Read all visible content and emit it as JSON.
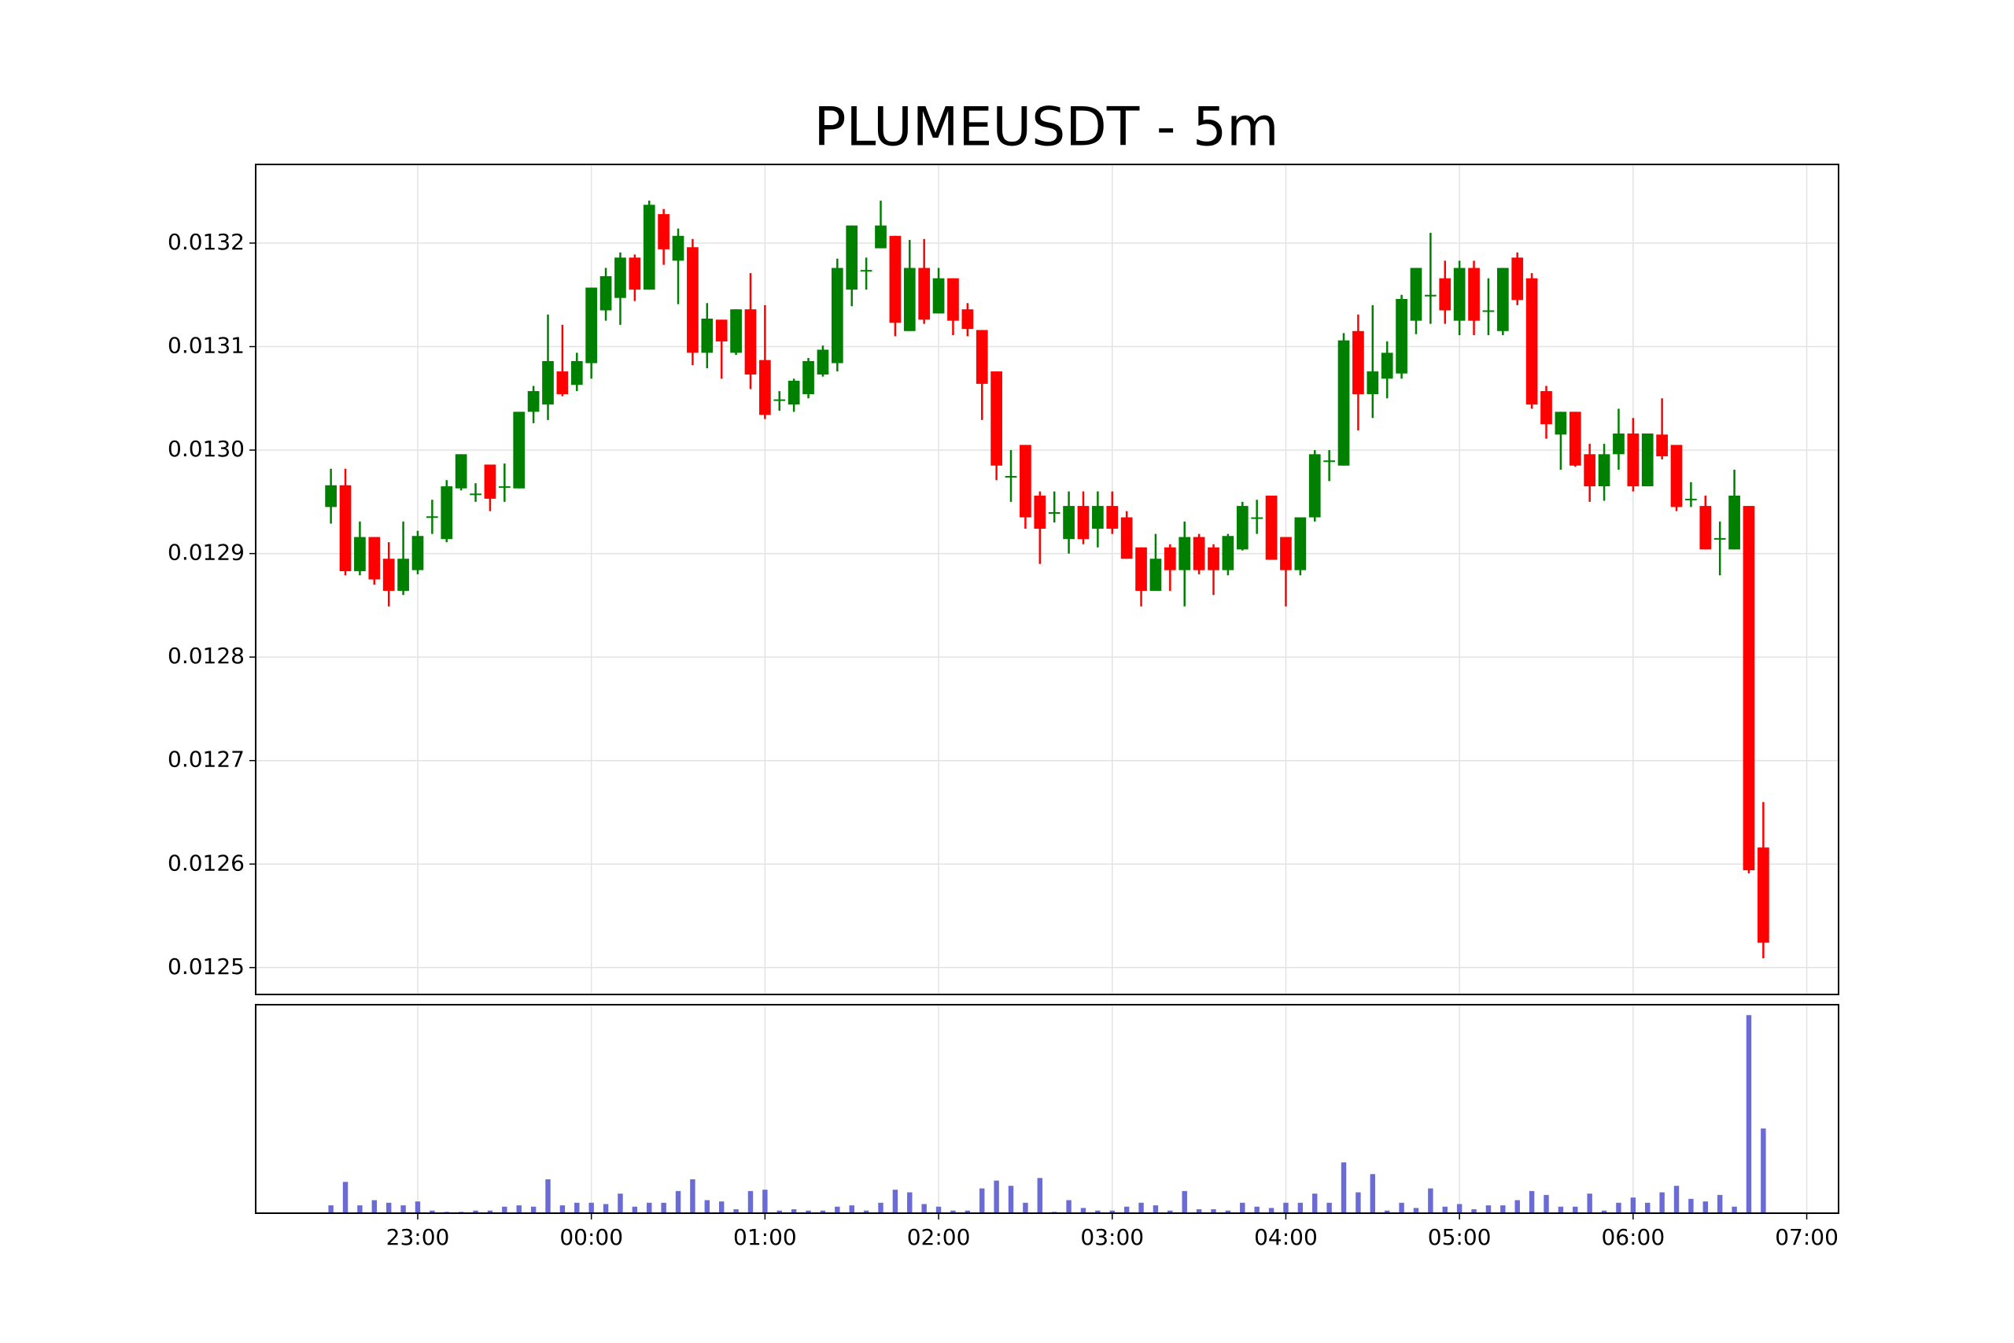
{
  "chart_data": {
    "type": "candlestick",
    "title": "PLUMEUSDT - 5m",
    "x": [
      "22:30",
      "22:35",
      "22:40",
      "22:45",
      "22:50",
      "22:55",
      "23:00",
      "23:05",
      "23:10",
      "23:15",
      "23:20",
      "23:25",
      "23:30",
      "23:35",
      "23:40",
      "23:45",
      "23:50",
      "23:55",
      "00:00",
      "00:05",
      "00:10",
      "00:15",
      "00:20",
      "00:25",
      "00:30",
      "00:35",
      "00:40",
      "00:45",
      "00:50",
      "00:55",
      "01:00",
      "01:05",
      "01:10",
      "01:15",
      "01:20",
      "01:25",
      "01:30",
      "01:35",
      "01:40",
      "01:45",
      "01:50",
      "01:55",
      "02:00",
      "02:05",
      "02:10",
      "02:15",
      "02:20",
      "02:25",
      "02:30",
      "02:35",
      "02:40",
      "02:45",
      "02:50",
      "02:55",
      "03:00",
      "03:05",
      "03:10",
      "03:15",
      "03:20",
      "03:25",
      "03:30",
      "03:35",
      "03:40",
      "03:45",
      "03:50",
      "03:55",
      "04:00",
      "04:05",
      "04:10",
      "04:15",
      "04:20",
      "04:25",
      "04:30",
      "04:35",
      "04:40",
      "04:45",
      "04:50",
      "04:55",
      "05:00",
      "05:05",
      "05:10",
      "05:15",
      "05:20",
      "05:25",
      "05:30",
      "05:35",
      "05:40",
      "05:45",
      "05:50",
      "05:55",
      "06:00",
      "06:05",
      "06:10",
      "06:15",
      "06:20",
      "06:25",
      "06:30",
      "06:35",
      "06:40",
      "06:45"
    ],
    "open": [
      0.012945,
      0.012966,
      0.012883,
      0.012916,
      0.012895,
      0.012864,
      0.012884,
      0.012936,
      0.012914,
      0.012963,
      0.012958,
      0.012986,
      0.012965,
      0.012963,
      0.013037,
      0.013044,
      0.013076,
      0.013063,
      0.013084,
      0.013135,
      0.013147,
      0.013186,
      0.013155,
      0.013228,
      0.013183,
      0.013196,
      0.013094,
      0.013126,
      0.013094,
      0.013136,
      0.013087,
      0.013049,
      0.013044,
      0.013054,
      0.013073,
      0.013084,
      0.013155,
      0.013174,
      0.013195,
      0.013207,
      0.013115,
      0.013176,
      0.013132,
      0.013166,
      0.013136,
      0.013116,
      0.013076,
      0.012975,
      0.013005,
      0.012956,
      0.01294,
      0.012914,
      0.012946,
      0.012924,
      0.012946,
      0.012935,
      0.012906,
      0.012864,
      0.012906,
      0.012884,
      0.012916,
      0.012906,
      0.012884,
      0.012904,
      0.012935,
      0.012956,
      0.012916,
      0.012884,
      0.012935,
      0.01299,
      0.012985,
      0.013115,
      0.013054,
      0.013069,
      0.013074,
      0.013125,
      0.01315,
      0.013166,
      0.013125,
      0.013176,
      0.013135,
      0.013115,
      0.013186,
      0.013166,
      0.013057,
      0.013015,
      0.013037,
      0.012996,
      0.012965,
      0.012996,
      0.013016,
      0.012965,
      0.013015,
      0.013005,
      0.012953,
      0.012946,
      0.012915,
      0.012904,
      0.012946,
      0.012616
    ],
    "high": [
      0.012982,
      0.012982,
      0.012931,
      0.012916,
      0.012911,
      0.012931,
      0.012922,
      0.012952,
      0.012971,
      0.012996,
      0.012968,
      0.012986,
      0.012987,
      0.013037,
      0.013062,
      0.013131,
      0.013121,
      0.013094,
      0.013157,
      0.013176,
      0.013191,
      0.013189,
      0.013241,
      0.013233,
      0.013214,
      0.013204,
      0.013142,
      0.013126,
      0.013136,
      0.013171,
      0.01314,
      0.013057,
      0.013069,
      0.013089,
      0.013101,
      0.013185,
      0.013217,
      0.013186,
      0.013241,
      0.013207,
      0.013203,
      0.013204,
      0.013176,
      0.013166,
      0.013142,
      0.013116,
      0.013076,
      0.013,
      0.013005,
      0.01296,
      0.01296,
      0.01296,
      0.01296,
      0.01296,
      0.01296,
      0.012941,
      0.012906,
      0.012919,
      0.012909,
      0.012931,
      0.012919,
      0.012909,
      0.012919,
      0.01295,
      0.012952,
      0.012956,
      0.012916,
      0.012935,
      0.013,
      0.013,
      0.013113,
      0.013131,
      0.01314,
      0.013105,
      0.01315,
      0.013176,
      0.01321,
      0.013183,
      0.013183,
      0.013183,
      0.013166,
      0.013176,
      0.013191,
      0.013171,
      0.013062,
      0.013037,
      0.013037,
      0.013006,
      0.013006,
      0.01304,
      0.013031,
      0.013016,
      0.01305,
      0.013005,
      0.012969,
      0.012956,
      0.012931,
      0.012981,
      0.012946,
      0.01266
    ],
    "low": [
      0.012929,
      0.012879,
      0.012879,
      0.01287,
      0.012849,
      0.01286,
      0.01288,
      0.012919,
      0.012911,
      0.012961,
      0.01295,
      0.012941,
      0.01295,
      0.012963,
      0.013026,
      0.013029,
      0.013052,
      0.013057,
      0.013069,
      0.013125,
      0.013121,
      0.013144,
      0.013155,
      0.013179,
      0.013141,
      0.013082,
      0.013079,
      0.013069,
      0.013092,
      0.013059,
      0.01303,
      0.013038,
      0.013037,
      0.01305,
      0.013071,
      0.013076,
      0.013139,
      0.013155,
      0.013195,
      0.01311,
      0.013115,
      0.013122,
      0.013132,
      0.013111,
      0.01311,
      0.013029,
      0.012971,
      0.01295,
      0.012924,
      0.01289,
      0.01293,
      0.0129,
      0.012909,
      0.012906,
      0.012919,
      0.012895,
      0.012849,
      0.012864,
      0.012864,
      0.012849,
      0.01288,
      0.01286,
      0.012879,
      0.012903,
      0.012919,
      0.012894,
      0.012849,
      0.012879,
      0.012931,
      0.01297,
      0.012985,
      0.013019,
      0.013031,
      0.01305,
      0.013069,
      0.013112,
      0.013122,
      0.013122,
      0.013111,
      0.013111,
      0.013111,
      0.013111,
      0.01314,
      0.01304,
      0.013011,
      0.012981,
      0.012984,
      0.01295,
      0.012951,
      0.012981,
      0.01296,
      0.012965,
      0.012991,
      0.012941,
      0.012945,
      0.012904,
      0.012879,
      0.012904,
      0.012591,
      0.012509
    ],
    "close": [
      0.012966,
      0.012883,
      0.012916,
      0.012875,
      0.012864,
      0.012895,
      0.012917,
      0.012936,
      0.012965,
      0.012996,
      0.012958,
      0.012953,
      0.012965,
      0.013037,
      0.013057,
      0.013086,
      0.013054,
      0.013086,
      0.013157,
      0.013168,
      0.013186,
      0.013155,
      0.013237,
      0.013194,
      0.013207,
      0.013094,
      0.013127,
      0.013105,
      0.013136,
      0.013073,
      0.013034,
      0.013049,
      0.013067,
      0.013086,
      0.013097,
      0.013176,
      0.013217,
      0.013174,
      0.013217,
      0.013123,
      0.013176,
      0.013126,
      0.013166,
      0.013125,
      0.013117,
      0.013064,
      0.012985,
      0.012975,
      0.012935,
      0.012924,
      0.01294,
      0.012946,
      0.012914,
      0.012946,
      0.012924,
      0.012895,
      0.012864,
      0.012895,
      0.012884,
      0.012916,
      0.012884,
      0.012884,
      0.012917,
      0.012946,
      0.012935,
      0.012894,
      0.012884,
      0.012935,
      0.012996,
      0.01299,
      0.013106,
      0.013054,
      0.013076,
      0.013094,
      0.013146,
      0.013176,
      0.01315,
      0.013135,
      0.013176,
      0.013125,
      0.013135,
      0.013176,
      0.013145,
      0.013044,
      0.013025,
      0.013037,
      0.012985,
      0.012965,
      0.012996,
      0.013016,
      0.012965,
      0.013016,
      0.012994,
      0.012945,
      0.012953,
      0.012904,
      0.012915,
      0.012956,
      0.012594,
      0.012524
    ],
    "volume": [
      6,
      24,
      6,
      10,
      8,
      6,
      9,
      2,
      1,
      1,
      2,
      2,
      5,
      6,
      5,
      26,
      6,
      8,
      8,
      7,
      15,
      5,
      8,
      8,
      17,
      26,
      10,
      9,
      3,
      17,
      18,
      2,
      3,
      2,
      2,
      5,
      6,
      2,
      8,
      18,
      16,
      7,
      5,
      2,
      2,
      19,
      25,
      21,
      8,
      27,
      1,
      10,
      4,
      2,
      2,
      5,
      8,
      6,
      2,
      17,
      3,
      3,
      2,
      8,
      5,
      4,
      8,
      8,
      15,
      8,
      39,
      16,
      30,
      2,
      8,
      4,
      19,
      5,
      7,
      3,
      6,
      6,
      10,
      17,
      14,
      5,
      5,
      15,
      2,
      8,
      12,
      8,
      16,
      21,
      11,
      9,
      14,
      5,
      152,
      65
    ],
    "up_color": "#008000",
    "down_color": "#ff0000",
    "volume_color": "#6b6bd6",
    "xlim": [
      "22:04",
      "07:11"
    ],
    "xticks": [
      "23:00",
      "00:00",
      "01:00",
      "02:00",
      "03:00",
      "04:00",
      "05:00",
      "06:00",
      "07:00"
    ],
    "ylim": [
      0.012474,
      0.013276
    ],
    "yticks": [
      0.0125,
      0.0126,
      0.0127,
      0.0128,
      0.0129,
      {
        "value": 0.013,
        "label": "0.0130"
      },
      0.0131,
      0.0132
    ],
    "volume_ylim": [
      0,
      160
    ],
    "grid": true
  }
}
